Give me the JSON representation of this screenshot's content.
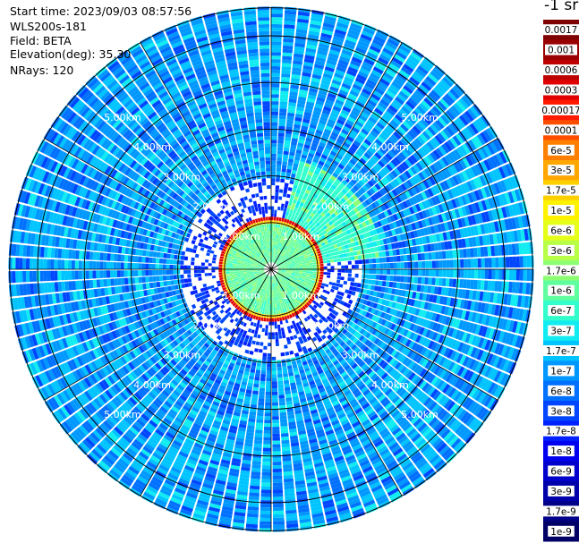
{
  "header": {
    "start_time": "Start time: 2023/09/03 08:57:56",
    "instrument": "WLS200s-181",
    "field": "Field: BETA",
    "elevation": "Elevation(deg): 35.30",
    "nrays": "NRays: 120"
  },
  "colorbar": {
    "unit_label": "-1 sr",
    "labels": [
      "0.0017",
      "0.001",
      "0.0006",
      "0.0003",
      "0.00017",
      "0.0001",
      "6e-5",
      "3e-5",
      "1.7e-5",
      "1e-5",
      "6e-6",
      "3e-6",
      "1.7e-6",
      "1e-6",
      "6e-7",
      "3e-7",
      "1.7e-7",
      "1e-7",
      "6e-8",
      "3e-8",
      "1.7e-8",
      "1e-8",
      "6e-9",
      "3e-9",
      "1.7e-9",
      "1e-9"
    ],
    "colors": [
      "#7f0000",
      "#9a0000",
      "#bd0000",
      "#e00000",
      "#ff1a00",
      "#ff4d00",
      "#ff8000",
      "#ffa600",
      "#ffd000",
      "#fff200",
      "#e6ff19",
      "#b8ff47",
      "#8cff73",
      "#5fffa0",
      "#33ffcc",
      "#10ecf0",
      "#00c4ff",
      "#0098ff",
      "#0070ff",
      "#0046ff",
      "#0020ff",
      "#0000f0",
      "#0000cc",
      "#0000aa",
      "#000088",
      "#000066"
    ]
  },
  "chart_data": {
    "type": "polar",
    "field": "BETA",
    "elevation_deg": 35.3,
    "n_rays": 120,
    "range_rings_km": [
      1,
      2,
      3,
      4,
      5
    ],
    "ring_labels": [
      "1.00km",
      "2.00km",
      "3.00km",
      "4.00km",
      "5.00km"
    ],
    "max_range_km": 5.6
  }
}
